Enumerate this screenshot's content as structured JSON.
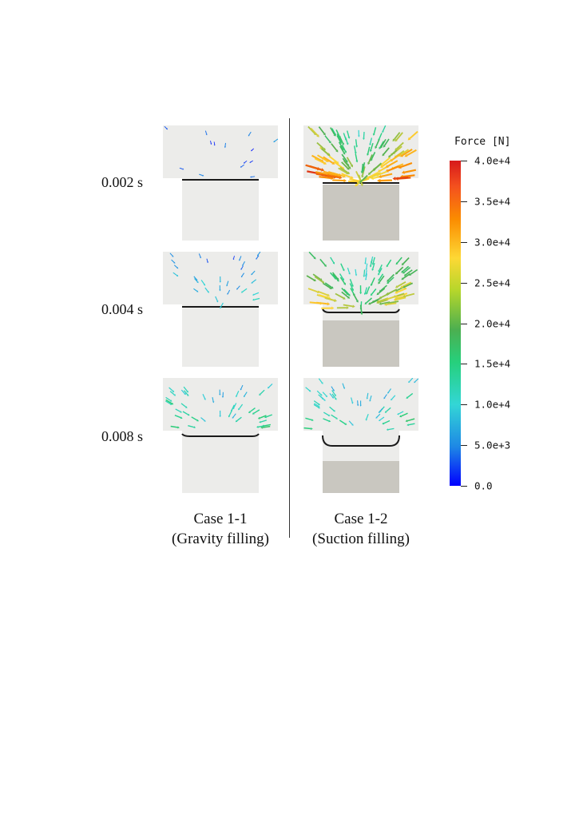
{
  "rows": [
    {
      "time_label": "0.002 s"
    },
    {
      "time_label": "0.004 s"
    },
    {
      "time_label": "0.008 s"
    }
  ],
  "cases": [
    {
      "title_line1": "Case 1-1",
      "title_line2": "(Gravity filling)"
    },
    {
      "title_line1": "Case 1-2",
      "title_line2": "(Suction filling)"
    }
  ],
  "colorbar": {
    "title": "Force [N]",
    "min": 0,
    "max": 40000,
    "ticks": [
      "4.0e+4",
      "3.5e+4",
      "3.0e+4",
      "2.5e+4",
      "2.0e+4",
      "1.5e+4",
      "1.0e+4",
      "5.0e+3",
      "0.0"
    ]
  },
  "colors": {
    "chamber": "#ececea",
    "liquid_suction": "#c9c7c0",
    "interface": "#1a1a1a",
    "divider": "#333333"
  }
}
